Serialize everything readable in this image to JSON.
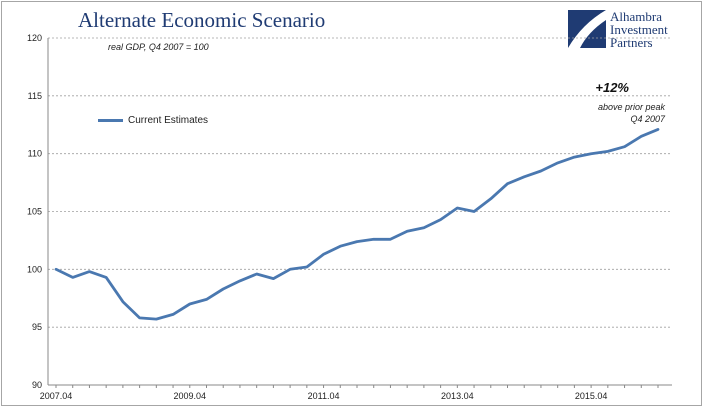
{
  "brand": {
    "line1": "Alhambra",
    "line2": "Investment",
    "line3": "Partners"
  },
  "chart_data": {
    "type": "line",
    "title": "Alternate Economic Scenario",
    "subtitle": "real GDP, Q4 2007 = 100",
    "annotation": {
      "main": "+12%",
      "line1": "above prior peak",
      "line2": "Q4 2007"
    },
    "ylim": [
      90,
      120
    ],
    "yticks": [
      90,
      95,
      100,
      105,
      110,
      115,
      120
    ],
    "grid": true,
    "legend_position": "upper-left",
    "x_tick_labels": [
      {
        "label": "2007.04",
        "index": 0
      },
      {
        "label": "2009.04",
        "index": 8
      },
      {
        "label": "2011.04",
        "index": 16
      },
      {
        "label": "2013.04",
        "index": 24
      },
      {
        "label": "2015.04",
        "index": 32
      }
    ],
    "series": [
      {
        "name": "Current Estimates",
        "color": "#4a78b0",
        "values": [
          100.0,
          99.3,
          99.8,
          99.3,
          97.2,
          95.8,
          95.7,
          96.1,
          97.0,
          97.4,
          98.3,
          99.0,
          99.6,
          99.2,
          100.0,
          100.2,
          101.3,
          102.0,
          102.4,
          102.6,
          102.6,
          103.3,
          103.6,
          104.3,
          105.3,
          105.0,
          106.1,
          107.4,
          108.0,
          108.5,
          109.2,
          109.7,
          110.0,
          110.2,
          110.6,
          111.5,
          112.1
        ]
      }
    ]
  }
}
